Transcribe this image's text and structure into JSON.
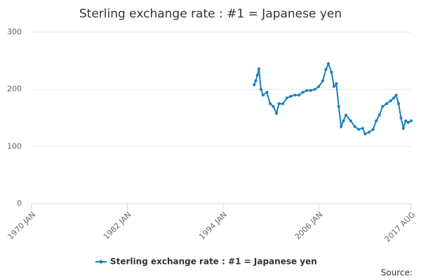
{
  "chart_data": {
    "type": "line",
    "title": "Sterling exchange rate : #1 = Japanese yen",
    "source_label": "Source:",
    "x": [
      1997.9,
      1998.1,
      1998.3,
      1998.5,
      1998.75,
      1999.0,
      1999.5,
      1999.9,
      2000.3,
      2000.7,
      2001.0,
      2001.5,
      2002.0,
      2002.5,
      2003.0,
      2003.5,
      2004.0,
      2004.5,
      2005.0,
      2005.5,
      2006.0,
      2006.5,
      2006.9,
      2007.2,
      2007.6,
      2007.9,
      2008.2,
      2008.5,
      2008.8,
      2009.1,
      2009.4,
      2010.0,
      2010.5,
      2011.0,
      2011.5,
      2011.8,
      2012.3,
      2012.8,
      2013.2,
      2013.6,
      2014.0,
      2014.5,
      2015.0,
      2015.4,
      2015.7,
      2016.0,
      2016.3,
      2016.6,
      2016.9,
      2017.2,
      2017.58
    ],
    "series": [
      {
        "name": "Sterling exchange rate : #1 = Japanese yen",
        "color": "#1a7fba",
        "values": [
          208,
          215,
          225,
          236,
          200,
          190,
          195,
          175,
          170,
          158,
          175,
          175,
          185,
          188,
          190,
          190,
          195,
          198,
          198,
          200,
          205,
          215,
          235,
          245,
          230,
          205,
          210,
          170,
          135,
          145,
          155,
          145,
          135,
          130,
          132,
          122,
          125,
          130,
          145,
          155,
          170,
          175,
          180,
          185,
          190,
          175,
          150,
          132,
          145,
          142,
          145
        ]
      }
    ],
    "xlim": [
      1970,
      2017.58
    ],
    "xticks": [
      {
        "value": 1970,
        "label": "1970 JAN"
      },
      {
        "value": 1982,
        "label": "1982 JAN"
      },
      {
        "value": 1994,
        "label": "1994 JAN"
      },
      {
        "value": 2006,
        "label": "2006 JAN"
      },
      {
        "value": 2017.58,
        "label": "2017 AUG"
      }
    ],
    "ylim": [
      0,
      300
    ],
    "yticks": [
      0,
      100,
      200,
      300
    ],
    "grid": true,
    "legend": "bottom"
  }
}
